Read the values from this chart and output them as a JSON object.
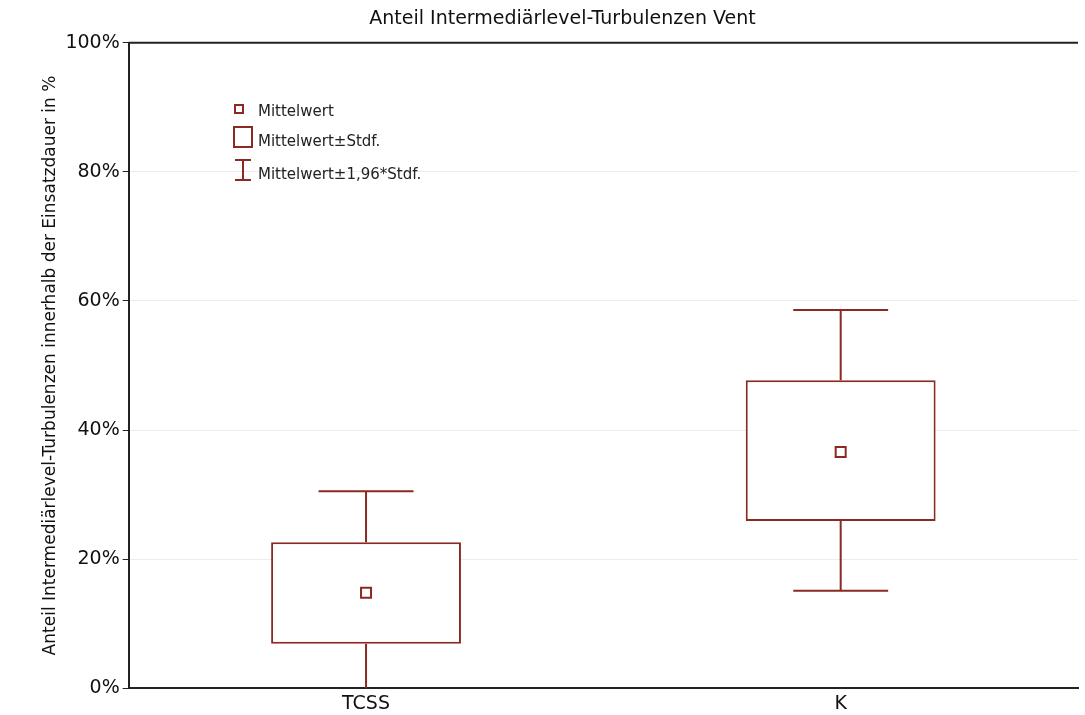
{
  "chart_data": {
    "type": "box",
    "title": "Anteil Intermediärlevel-Turbulenzen Vent",
    "ylabel": "Anteil Intermediärlevel-Turbulenzen innerhalb der Einsatzdauer in %",
    "categories": [
      "TCSS",
      "K"
    ],
    "series": [
      {
        "color": "#8b2a22",
        "boxes": [
          {
            "low": 0,
            "q1": 6.9,
            "median": 14.8,
            "q3": 22.6,
            "high": 30.5
          },
          {
            "low": 15.1,
            "q1": 25.9,
            "median": 36.6,
            "q3": 47.7,
            "high": 58.6
          }
        ]
      }
    ],
    "ylim": [
      0,
      100
    ],
    "yticks": [
      {
        "value": 0,
        "label": "0%"
      },
      {
        "value": 20,
        "label": "20%"
      },
      {
        "value": 40,
        "label": "40%"
      },
      {
        "value": 60,
        "label": "60%"
      },
      {
        "value": 80,
        "label": "80%"
      },
      {
        "value": 100,
        "label": "100%"
      }
    ],
    "grid": "y",
    "annotations": [
      "Mittelwert",
      "Mittelwert±Stdf.",
      "Mittelwert±1,96*Stdf."
    ]
  }
}
